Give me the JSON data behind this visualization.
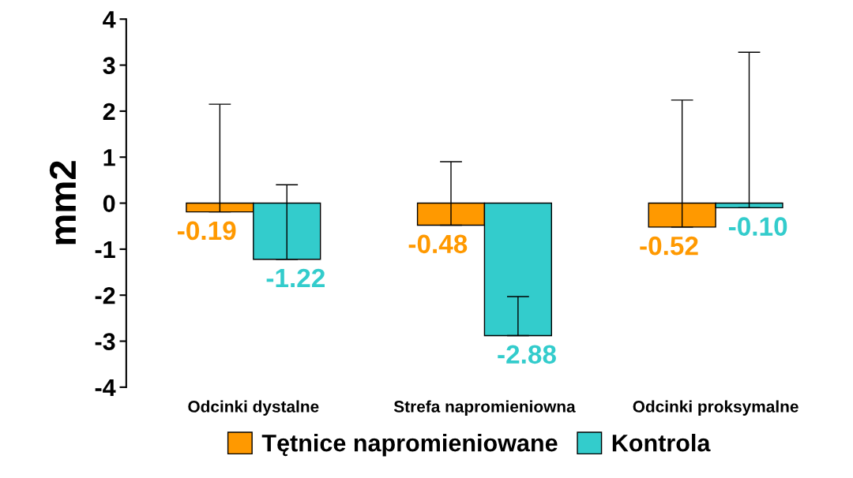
{
  "chart_data": {
    "type": "bar",
    "ylabel": "mm2",
    "categories": [
      "Odcinki dystalne",
      "Strefa napromieniowna",
      "Odcinki proksymalne"
    ],
    "series": [
      {
        "name": "Tętnice napromieniowane",
        "color": "#ff9900",
        "values": [
          -0.19,
          -0.48,
          -0.52
        ],
        "errors": [
          [
            -0.19,
            2.15
          ],
          [
            -0.48,
            0.9
          ],
          [
            -0.52,
            2.24
          ]
        ],
        "value_labels": [
          "-0.19",
          "-0.48",
          "-0.52"
        ]
      },
      {
        "name": "Kontrola",
        "color": "#33cccc",
        "values": [
          -1.22,
          -2.88,
          -0.1
        ],
        "errors": [
          [
            -1.22,
            0.4
          ],
          [
            -2.88,
            -2.03
          ],
          [
            -0.1,
            3.28
          ]
        ],
        "value_labels": [
          "-1.22",
          "-2.88",
          "-0.10"
        ]
      }
    ],
    "ylim": [
      -4,
      4
    ],
    "yticks": [
      -4,
      -3,
      -2,
      -1,
      0,
      1,
      2,
      3,
      4
    ],
    "grid": false,
    "legend": "bottom"
  }
}
